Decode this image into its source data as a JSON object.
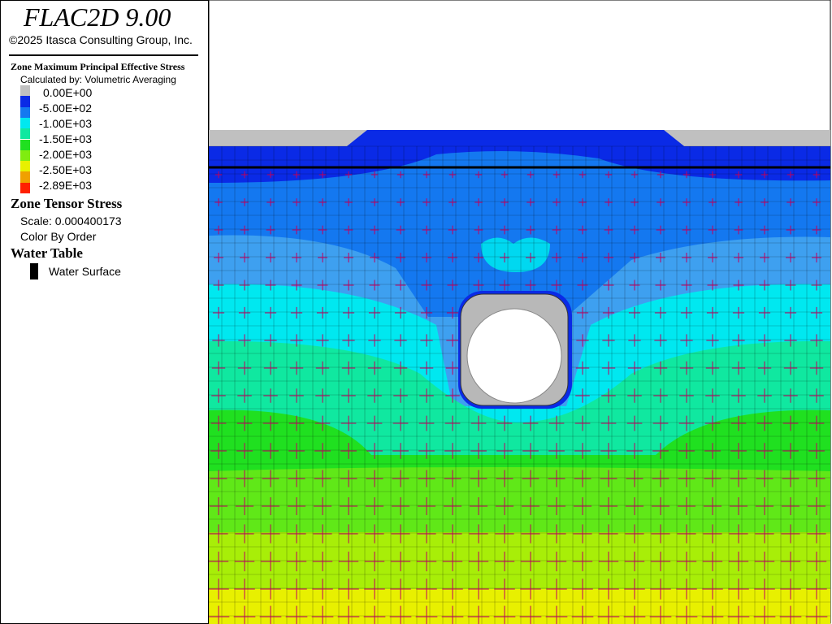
{
  "header": {
    "title": "FLAC2D 9.00",
    "copyright": "©2025 Itasca Consulting Group, Inc."
  },
  "contour_legend": {
    "title": "Zone Maximum Principal Effective Stress",
    "subtitle": "Calculated by: Volumetric Averaging",
    "swatches": [
      "#c0c0c0",
      "#0a2ae6",
      "#1478f0",
      "#00e8f0",
      "#10e8a0",
      "#20e020",
      "#80ec10",
      "#e8f000",
      "#f0a000",
      "#ff2000"
    ],
    "labels": [
      "0.00E+00",
      "-5.00E+02",
      "-1.00E+03",
      "-1.50E+03",
      "-2.00E+03",
      "-2.50E+03",
      "-2.89E+03"
    ]
  },
  "tensor": {
    "title": "Zone Tensor Stress",
    "scale": "Scale: 0.000400173",
    "color": "Color By Order"
  },
  "water_table": {
    "title": "Water Table",
    "entry": "Water Surface"
  }
}
